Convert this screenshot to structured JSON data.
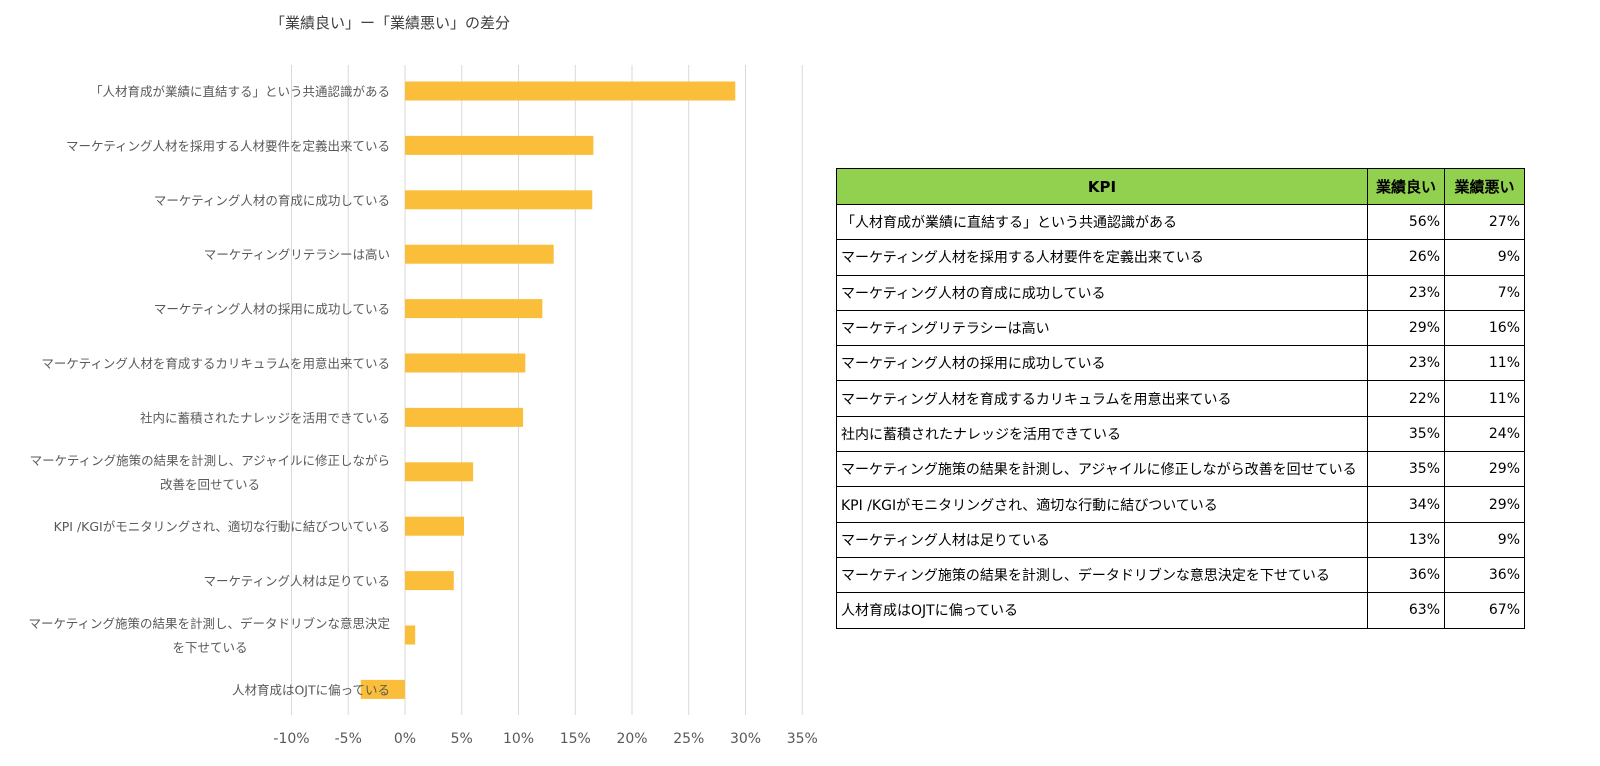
{
  "chart_data": {
    "type": "bar",
    "orientation": "horizontal",
    "title": "「業績良い」ー「業績悪い」の差分",
    "categories": [
      [
        "「人材育成が業績に直結する」という共通認識がある"
      ],
      [
        "マーケティング人材を採用する人材要件を定義出来ている"
      ],
      [
        "マーケティング人材の育成に成功している"
      ],
      [
        "マーケティングリテラシーは高い"
      ],
      [
        "マーケティング人材の採用に成功している"
      ],
      [
        "マーケティング人材を育成するカリキュラムを用意出来ている"
      ],
      [
        "社内に蓄積されたナレッジを活用できている"
      ],
      [
        "マーケティング施策の結果を計測し、アジャイルに修正しながら",
        "改善を回せている"
      ],
      [
        "KPI /KGIがモニタリングされ、適切な行動に結びついている"
      ],
      [
        "マーケティング人材は足りている"
      ],
      [
        "マーケティング施策の結果を計測し、データドリブンな意思決定",
        "を下せている"
      ],
      [
        "人材育成はOJTに偏っている"
      ]
    ],
    "values": [
      29.1,
      16.6,
      16.5,
      13.1,
      12.1,
      10.6,
      10.4,
      6.0,
      5.2,
      4.3,
      0.9,
      -3.9
    ],
    "xlim": [
      -10,
      35
    ],
    "xticks": [
      "-10%",
      "-5%",
      "0%",
      "5%",
      "10%",
      "15%",
      "20%",
      "25%",
      "30%",
      "35%"
    ],
    "tick_values": [
      -10,
      -5,
      0,
      5,
      10,
      15,
      20,
      25,
      30,
      35
    ],
    "grid": true,
    "bar_color": "#fbbe3a"
  },
  "table": {
    "headers": [
      "KPI",
      "業績良い",
      "業績悪い"
    ],
    "header_color": "#92d050",
    "rows": [
      [
        "「人材育成が業績に直結する」という共通認識がある",
        "56%",
        "27%"
      ],
      [
        "マーケティング人材を採用する人材要件を定義出来ている",
        "26%",
        "9%"
      ],
      [
        "マーケティング人材の育成に成功している",
        "23%",
        "7%"
      ],
      [
        "マーケティングリテラシーは高い",
        "29%",
        "16%"
      ],
      [
        "マーケティング人材の採用に成功している",
        "23%",
        "11%"
      ],
      [
        "マーケティング人材を育成するカリキュラムを用意出来ている",
        "22%",
        "11%"
      ],
      [
        "社内に蓄積されたナレッジを活用できている",
        "35%",
        "24%"
      ],
      [
        "マーケティング施策の結果を計測し、アジャイルに修正しながら改善を回せている",
        "35%",
        "29%"
      ],
      [
        "KPI /KGIがモニタリングされ、適切な行動に結びついている",
        "34%",
        "29%"
      ],
      [
        "マーケティング人材は足りている",
        "13%",
        "9%"
      ],
      [
        "マーケティング施策の結果を計測し、データドリブンな意思決定を下せている",
        "36%",
        "36%"
      ],
      [
        "人材育成はOJTに偏っている",
        "63%",
        "67%"
      ]
    ]
  }
}
